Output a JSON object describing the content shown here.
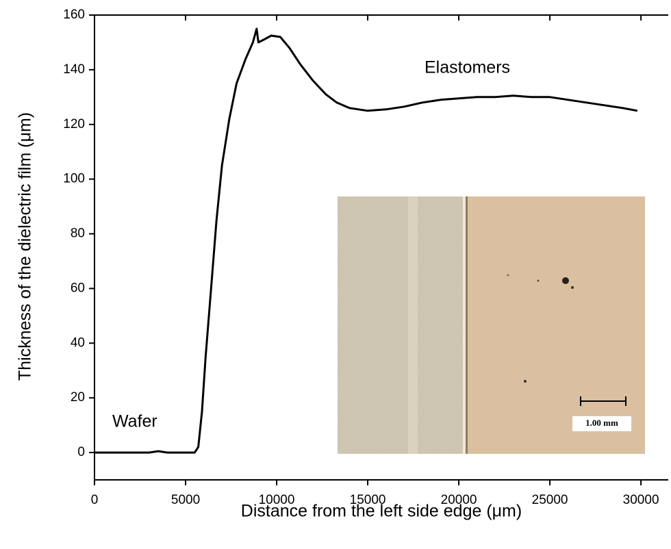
{
  "chart_data": {
    "type": "line",
    "xlabel": "Distance from the left side edge (μm)",
    "ylabel": "Thickness of the dielectric film (μm)",
    "annotations": [
      "Elastomers",
      "Wafer"
    ],
    "inset_scale_label": "1.00 mm",
    "color": "#000000",
    "x": [
      0,
      3000,
      3500,
      4000,
      5500,
      5700,
      5900,
      6100,
      6400,
      6700,
      7000,
      7400,
      7800,
      8300,
      8700,
      8900,
      9000,
      9300,
      9700,
      10200,
      10700,
      11300,
      12000,
      12700,
      13300,
      14000,
      15000,
      16000,
      17000,
      18000,
      19000,
      20000,
      21000,
      22000,
      23000,
      24000,
      25000,
      26000,
      27000,
      28000,
      29000,
      29800
    ],
    "values": [
      0,
      0,
      0.5,
      0,
      0,
      2,
      15,
      35,
      60,
      85,
      105,
      122,
      135,
      144,
      150,
      155,
      150,
      151,
      152.5,
      152,
      148,
      142,
      136,
      131,
      128,
      126,
      125,
      125.5,
      126.5,
      128,
      129,
      129.5,
      130,
      130,
      130.5,
      130,
      130,
      129,
      128,
      127,
      126,
      125
    ],
    "xlim": [
      0,
      31500
    ],
    "ylim": [
      -10,
      160
    ],
    "xticks": [
      0,
      5000,
      10000,
      15000,
      20000,
      25000,
      30000
    ],
    "yticks": [
      0,
      20,
      40,
      60,
      80,
      100,
      120,
      140,
      160
    ]
  }
}
